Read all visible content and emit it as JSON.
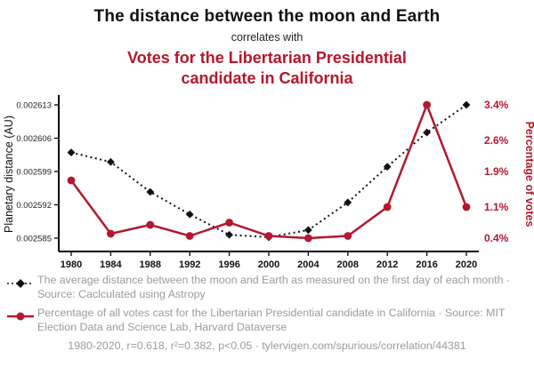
{
  "header": {
    "title": "The distance between the moon and Earth",
    "connector": "correlates with",
    "subtitle": "Votes for the Libertarian Presidential candidate in California"
  },
  "colors": {
    "accent": "#b3182d",
    "ink": "#111111",
    "muted": "#9b9b9b"
  },
  "chart_data": {
    "type": "line",
    "x": [
      1980,
      1984,
      1988,
      1992,
      1996,
      2000,
      2004,
      2008,
      2012,
      2016,
      2020
    ],
    "series": [
      {
        "name": "moon-earth-distance",
        "axis": "left",
        "color": "#111111",
        "line_style": "dotted",
        "marker": "diamond",
        "values": [
          0.002603,
          0.002601,
          0.0025947,
          0.00259,
          0.0025857,
          0.0025852,
          0.0025867,
          0.0025925,
          0.0026,
          0.0026072,
          0.002613
        ]
      },
      {
        "name": "libertarian-vote-share",
        "axis": "right",
        "color": "#b3182d",
        "line_style": "solid",
        "marker": "circle",
        "values": [
          1.7,
          0.5,
          0.7,
          0.45,
          0.75,
          0.45,
          0.4,
          0.45,
          1.1,
          3.4,
          1.1
        ]
      }
    ],
    "left_axis": {
      "label": "Planetary distance (AU)",
      "min": 0.002585,
      "max": 0.002613,
      "tick_values": [
        0.002613,
        0.002606,
        0.002599,
        0.002592,
        0.002585
      ],
      "tick_labels": [
        "0.002613",
        "0.002606",
        "0.002599",
        "0.002592",
        "0.002585"
      ]
    },
    "right_axis": {
      "label": "Percentage of votes",
      "min": 0.4,
      "max": 3.4,
      "tick_values": [
        3.4,
        2.6,
        1.9,
        1.1,
        0.4
      ],
      "tick_labels": [
        "3.4%",
        "2.6%",
        "1.9%",
        "1.1%",
        "0.4%"
      ]
    },
    "grid": false,
    "legend_position": "below"
  },
  "legend": [
    {
      "text": "The average distance between the moon and Earth as measured on the first day of each month · Source: Caclculated using Astropy"
    },
    {
      "text": "Percentage of all votes cast for the Libertarian Presidential candidate in California · Source: MIT Election Data and Science Lab, Harvard Dataverse"
    }
  ],
  "footer": "1980-2020, r=0.618, r²=0.382, p<0.05 · tylervigen.com/spurious/correlation/44381"
}
